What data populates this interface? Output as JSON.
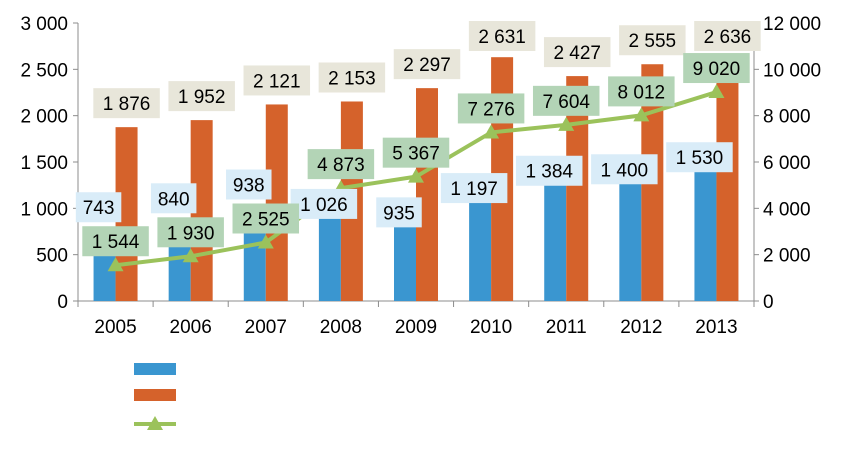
{
  "chart_data": {
    "type": "bar",
    "categories": [
      "2005",
      "2006",
      "2007",
      "2008",
      "2009",
      "2010",
      "2011",
      "2012",
      "2013"
    ],
    "series": [
      {
        "type": "bar",
        "axis": "left",
        "color": "#3a96d0",
        "label_bg": "#d9ecf8",
        "values": [
          743,
          840,
          938,
          1026,
          935,
          1197,
          1384,
          1400,
          1530
        ],
        "labels": [
          "743",
          "840",
          "938",
          "1 026",
          "935",
          "1 197",
          "1 384",
          "1 400",
          "1 530"
        ]
      },
      {
        "type": "bar",
        "axis": "left",
        "color": "#d5622b",
        "label_bg": "#e8e6da",
        "values": [
          1876,
          1952,
          2121,
          2153,
          2297,
          2631,
          2427,
          2555,
          2636
        ],
        "labels": [
          "1 876",
          "1 952",
          "2 121",
          "2 153",
          "2 297",
          "2 631",
          "2 427",
          "2 555",
          "2 636"
        ]
      },
      {
        "type": "line",
        "axis": "right",
        "color": "#9bc25b",
        "label_bg": "#b3d4b6",
        "values": [
          1544,
          1930,
          2525,
          4873,
          5367,
          7276,
          7604,
          8012,
          9020
        ],
        "labels": [
          "1 544",
          "1 930",
          "2 525",
          "4 873",
          "5 367",
          "7 276",
          "7 604",
          "8 012",
          "9 020"
        ]
      }
    ],
    "y_left": {
      "ylim": [
        0,
        3000
      ],
      "ticks": [
        0,
        500,
        1000,
        1500,
        2000,
        2500,
        3000
      ],
      "tick_labels": [
        "0",
        "500",
        "1 000",
        "1 500",
        "2 000",
        "2 500",
        "3 000"
      ]
    },
    "y_right": {
      "ylim": [
        0,
        12000
      ],
      "ticks": [
        0,
        2000,
        4000,
        6000,
        8000,
        10000,
        12000
      ],
      "tick_labels": [
        "0",
        "2 000",
        "4 000",
        "6 000",
        "8 000",
        "10 000",
        "12 000"
      ]
    },
    "grid": false,
    "legend_placement": "bottom-left"
  }
}
